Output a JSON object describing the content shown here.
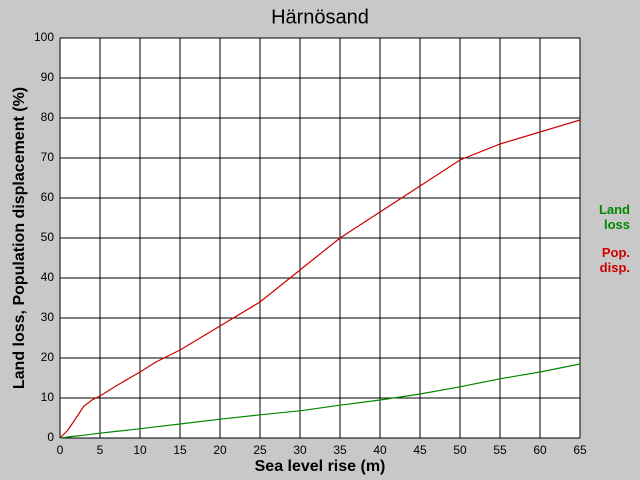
{
  "chart_data": {
    "type": "line",
    "title": "Härnösand",
    "x_label": "Sea level rise (m)",
    "y_label": "Land loss, Population displacement (%)",
    "x": [
      0,
      1,
      2,
      3,
      4,
      5,
      7,
      10,
      12,
      15,
      20,
      25,
      30,
      35,
      40,
      45,
      50,
      55,
      60,
      65
    ],
    "series": [
      {
        "name": "Land loss",
        "color": "#008800",
        "values": [
          0,
          0.25,
          0.5,
          0.7,
          0.95,
          1.2,
          1.65,
          2.3,
          2.8,
          3.5,
          4.7,
          5.8,
          6.8,
          8.2,
          9.5,
          11,
          12.8,
          14.8,
          16.5,
          18.5
        ]
      },
      {
        "name": "Pop. disp.",
        "color": "#cc0000",
        "values": [
          0,
          2,
          5,
          8,
          9.5,
          10.5,
          13,
          16.5,
          19,
          22,
          28,
          34,
          42,
          50,
          56.5,
          63,
          69.5,
          73.5,
          76.5,
          79.5
        ]
      }
    ],
    "xlim": [
      0,
      65
    ],
    "ylim": [
      0,
      100
    ],
    "xticks": [
      0,
      5,
      10,
      15,
      20,
      25,
      30,
      35,
      40,
      45,
      50,
      55,
      60,
      65
    ],
    "yticks": [
      0,
      10,
      20,
      30,
      40,
      50,
      60,
      70,
      80,
      90,
      100
    ],
    "grid": true
  }
}
